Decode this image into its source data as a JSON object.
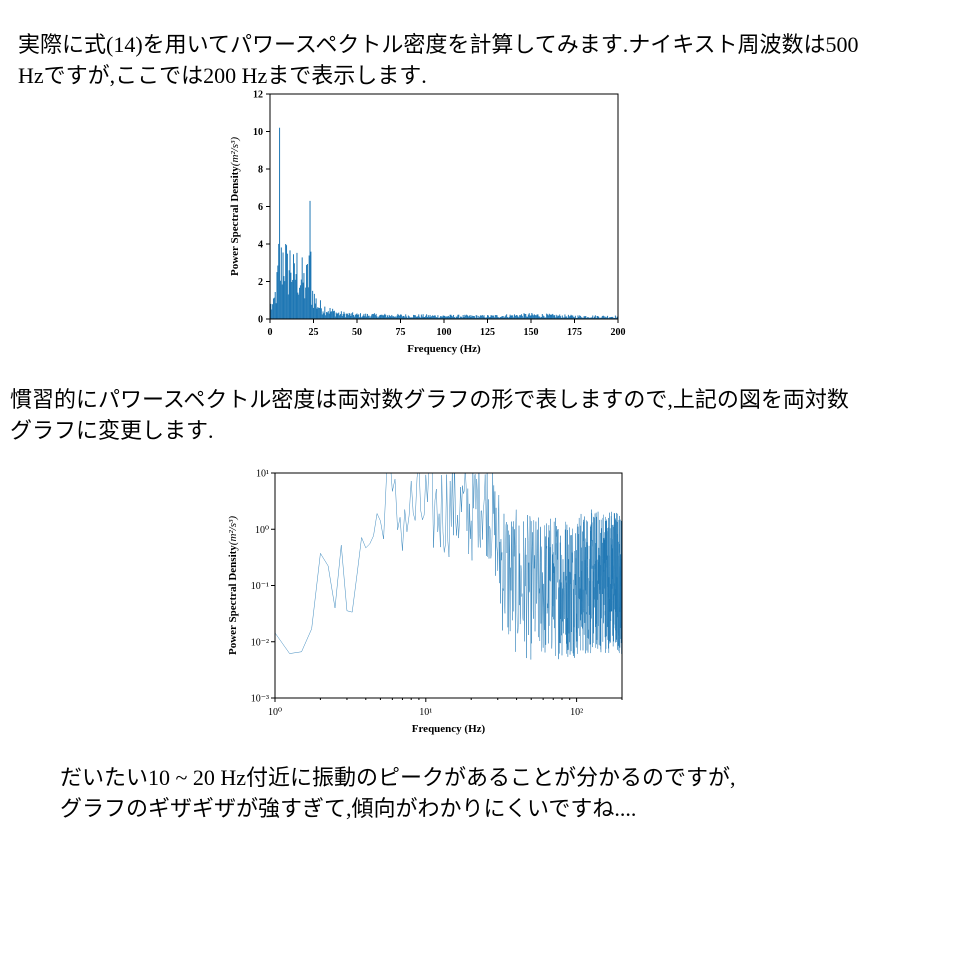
{
  "text": {
    "p1_line1": "実際に式(14)を用いてパワースペクトル密度を計算してみます.ナイキスト周波数は500",
    "p1_line2": "Hzですが,ここでは200 Hzまで表示します.",
    "p2_line1": "慣習的にパワースペクトル密度は両対数グラフの形で表しますので,上記の図を両対数",
    "p2_line2": "グラフに変更します.",
    "p3_line1": "だいたい10 ~ 20 Hz付近に振動のピークがあることが分かるのですが,",
    "p3_line2": "グラフのギザギザが強すぎて,傾向がわかりにくいですね...."
  },
  "colors": {
    "series": "#1f77b4"
  },
  "chart_data": [
    {
      "type": "bar",
      "xlabel": "Frequency (Hz)",
      "ylabel_text": "Power Spectral Density",
      "ylabel_unit": "(m²/s³)",
      "xlim": [
        0,
        200
      ],
      "ylim": [
        0,
        12
      ],
      "xticks": [
        0,
        25,
        50,
        75,
        100,
        125,
        150,
        175,
        200
      ],
      "yticks": [
        0,
        2,
        4,
        6,
        8,
        10,
        12
      ],
      "grid": false,
      "series": [
        {
          "x": [
            2,
            4,
            5,
            5.5,
            6,
            8,
            10,
            12,
            14,
            15,
            17,
            19,
            20,
            22,
            23,
            24,
            26,
            28,
            30,
            35,
            40,
            50,
            75,
            100,
            125,
            150,
            175,
            200
          ],
          "values": [
            1.0,
            2.5,
            4.2,
            10.2,
            3.8,
            5.1,
            3.6,
            4.4,
            3.0,
            3.9,
            3.2,
            3.0,
            2.5,
            3.3,
            6.3,
            2.2,
            1.4,
            1.0,
            0.9,
            0.6,
            0.4,
            0.3,
            0.25,
            0.22,
            0.2,
            0.3,
            0.2,
            0.18
          ]
        }
      ]
    },
    {
      "type": "line",
      "scale": "log-log",
      "xlabel": "Frequency (Hz)",
      "ylabel_text": "Power Spectral Density",
      "ylabel_unit": "(m²/s³)",
      "xlim": [
        1,
        200
      ],
      "ylim": [
        0.001,
        10
      ],
      "xticks": [
        "10⁰",
        "10¹",
        "10²"
      ],
      "yticks": [
        "10⁻³",
        "10⁻²",
        "10⁻¹",
        "10⁰",
        "10¹"
      ],
      "grid": false,
      "series": [
        {
          "x": [
            1,
            1.5,
            2,
            3,
            4,
            5,
            5.5,
            6,
            8,
            10,
            12,
            15,
            20,
            23,
            30,
            35,
            40,
            50,
            75,
            100,
            150,
            200
          ],
          "values": [
            0.005,
            0.05,
            0.08,
            0.1,
            0.6,
            1.5,
            10,
            2.0,
            2.5,
            3.0,
            2.6,
            3.2,
            2.2,
            4.5,
            0.5,
            0.2,
            0.15,
            0.12,
            0.13,
            0.14,
            0.17,
            0.16
          ]
        }
      ]
    }
  ]
}
